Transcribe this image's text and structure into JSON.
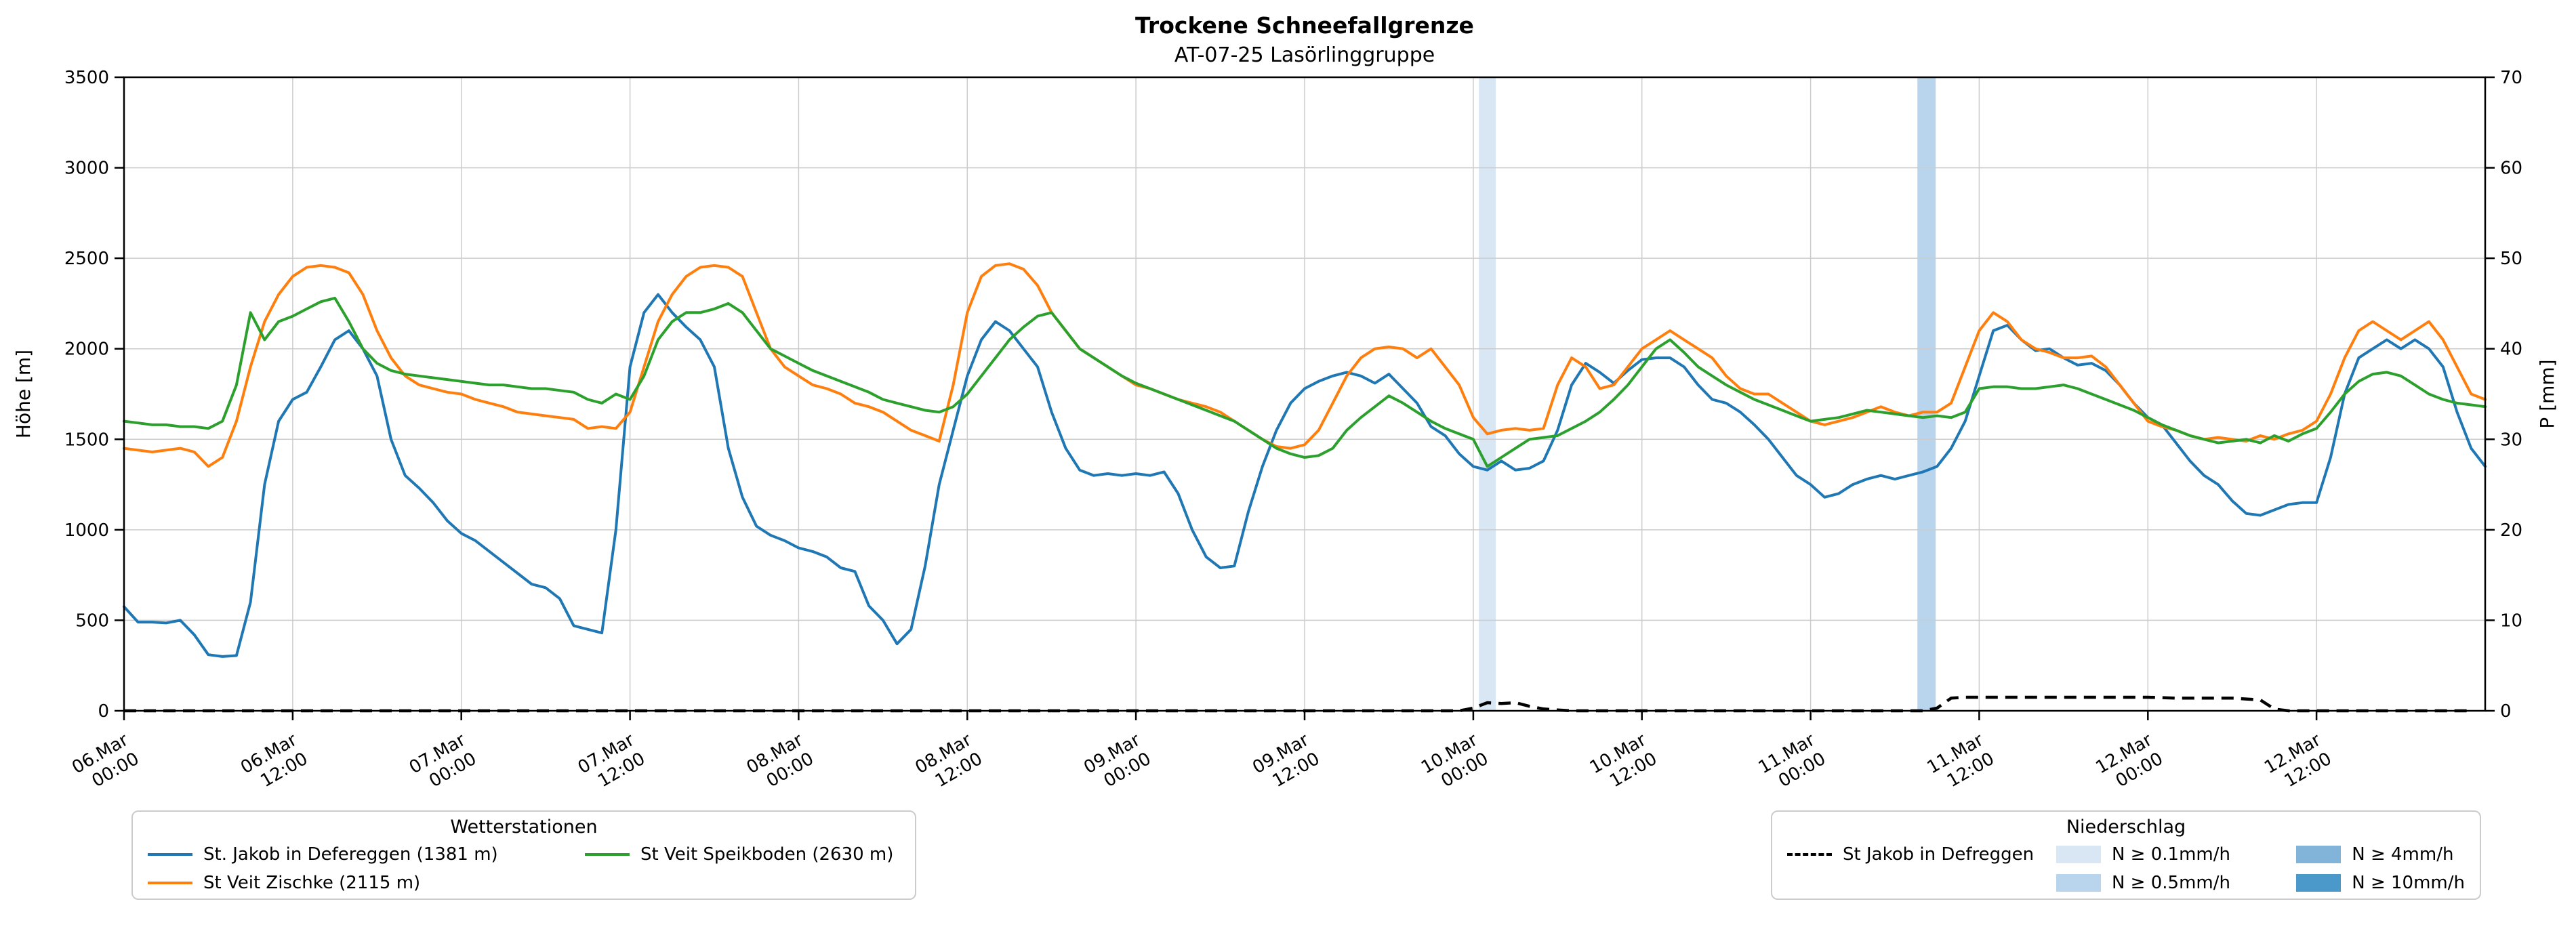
{
  "title": "Trockene Schneefallgrenze",
  "subtitle": "AT-07-25 Lasörlinggruppe",
  "axes": {
    "y_left": {
      "label": "Höhe [m]",
      "min": 0,
      "max": 3500,
      "ticks": [
        0,
        500,
        1000,
        1500,
        2000,
        2500,
        3000,
        3500
      ]
    },
    "y_right": {
      "label": "P [mm]",
      "min": 0,
      "max": 70,
      "ticks": [
        0,
        10,
        20,
        30,
        40,
        50,
        60,
        70
      ]
    },
    "x": {
      "range_hours": [
        0,
        168
      ],
      "tick_hours": [
        0,
        12,
        24,
        36,
        48,
        60,
        72,
        84,
        96,
        108,
        120,
        132,
        144,
        156
      ],
      "tick_labels": [
        [
          "06.Mar",
          "00:00"
        ],
        [
          "06.Mar",
          "12:00"
        ],
        [
          "07.Mar",
          "00:00"
        ],
        [
          "07.Mar",
          "12:00"
        ],
        [
          "08.Mar",
          "00:00"
        ],
        [
          "08.Mar",
          "12:00"
        ],
        [
          "09.Mar",
          "00:00"
        ],
        [
          "09.Mar",
          "12:00"
        ],
        [
          "10.Mar",
          "00:00"
        ],
        [
          "10.Mar",
          "12:00"
        ],
        [
          "11.Mar",
          "00:00"
        ],
        [
          "11.Mar",
          "12:00"
        ],
        [
          "12.Mar",
          "00:00"
        ],
        [
          "12.Mar",
          "12:00"
        ]
      ]
    }
  },
  "chart_data": {
    "type": "line",
    "x_start": "06 Mar 00:00",
    "x_step_hours": 1,
    "grid": true,
    "series": [
      {
        "name": "St. Jakob in Defereggen (1381 m)",
        "color": "#1f77b4",
        "axis": "left",
        "values": [
          575,
          490,
          490,
          485,
          500,
          420,
          310,
          300,
          305,
          600,
          1250,
          1600,
          1720,
          1760,
          1900,
          2050,
          2100,
          2000,
          1850,
          1500,
          1300,
          1230,
          1150,
          1050,
          980,
          940,
          880,
          820,
          760,
          700,
          680,
          620,
          470,
          450,
          430,
          1000,
          1900,
          2200,
          2300,
          2200,
          2120,
          2050,
          1900,
          1450,
          1180,
          1020,
          970,
          940,
          900,
          880,
          850,
          790,
          770,
          580,
          500,
          370,
          450,
          800,
          1250,
          1550,
          1850,
          2050,
          2150,
          2100,
          2000,
          1900,
          1650,
          1450,
          1330,
          1300,
          1310,
          1300,
          1310,
          1300,
          1320,
          1200,
          1000,
          850,
          790,
          800,
          1100,
          1350,
          1550,
          1700,
          1780,
          1820,
          1850,
          1870,
          1850,
          1810,
          1860,
          1780,
          1700,
          1570,
          1520,
          1420,
          1350,
          1330,
          1380,
          1330,
          1340,
          1380,
          1550,
          1800,
          1920,
          1870,
          1810,
          1880,
          1940,
          1950,
          1950,
          1900,
          1800,
          1720,
          1700,
          1650,
          1580,
          1500,
          1400,
          1300,
          1250,
          1180,
          1200,
          1250,
          1280,
          1300,
          1280,
          1300,
          1320,
          1350,
          1450,
          1600,
          1850,
          2100,
          2130,
          2050,
          1990,
          2000,
          1950,
          1910,
          1920,
          1880,
          1800,
          1700,
          1620,
          1580,
          1480,
          1380,
          1300,
          1250,
          1160,
          1090,
          1080,
          1110,
          1140,
          1150,
          1150,
          1400,
          1750,
          1950,
          2000,
          2050,
          2000,
          2050,
          2000,
          1900,
          1650,
          1450,
          1350
        ]
      },
      {
        "name": "St Veit Zischke (2115 m)",
        "color": "#ff7f0e",
        "axis": "left",
        "values": [
          1450,
          1440,
          1430,
          1440,
          1450,
          1430,
          1350,
          1400,
          1600,
          1900,
          2150,
          2300,
          2400,
          2450,
          2460,
          2450,
          2420,
          2300,
          2100,
          1950,
          1850,
          1800,
          1780,
          1760,
          1750,
          1720,
          1700,
          1680,
          1650,
          1640,
          1630,
          1620,
          1610,
          1560,
          1570,
          1560,
          1650,
          1900,
          2150,
          2300,
          2400,
          2450,
          2460,
          2450,
          2400,
          2200,
          2000,
          1900,
          1850,
          1800,
          1780,
          1750,
          1700,
          1680,
          1650,
          1600,
          1550,
          1520,
          1490,
          1800,
          2200,
          2400,
          2460,
          2470,
          2440,
          2350,
          2200,
          2100,
          2000,
          1950,
          1900,
          1850,
          1800,
          1780,
          1750,
          1720,
          1700,
          1680,
          1650,
          1600,
          1550,
          1500,
          1460,
          1450,
          1470,
          1550,
          1700,
          1850,
          1950,
          2000,
          2010,
          2000,
          1950,
          2000,
          1900,
          1800,
          1620,
          1530,
          1550,
          1560,
          1550,
          1560,
          1800,
          1950,
          1900,
          1780,
          1800,
          1900,
          2000,
          2050,
          2100,
          2050,
          2000,
          1950,
          1850,
          1780,
          1750,
          1750,
          1700,
          1650,
          1600,
          1580,
          1600,
          1620,
          1650,
          1680,
          1650,
          1630,
          1650,
          1650,
          1700,
          1900,
          2100,
          2200,
          2150,
          2050,
          2000,
          1980,
          1950,
          1950,
          1960,
          1900,
          1800,
          1700,
          1600,
          1570,
          1550,
          1520,
          1500,
          1510,
          1500,
          1490,
          1520,
          1500,
          1530,
          1550,
          1600,
          1750,
          1950,
          2100,
          2150,
          2100,
          2050,
          2100,
          2150,
          2050,
          1900,
          1750,
          1720
        ]
      },
      {
        "name": "St Veit Speikboden (2630 m)",
        "color": "#2ca02c",
        "axis": "left",
        "values": [
          1600,
          1590,
          1580,
          1580,
          1570,
          1570,
          1560,
          1600,
          1800,
          2200,
          2050,
          2150,
          2180,
          2220,
          2260,
          2280,
          2150,
          2000,
          1920,
          1880,
          1860,
          1850,
          1840,
          1830,
          1820,
          1810,
          1800,
          1800,
          1790,
          1780,
          1780,
          1770,
          1760,
          1720,
          1700,
          1750,
          1720,
          1850,
          2050,
          2150,
          2200,
          2200,
          2220,
          2250,
          2200,
          2100,
          2000,
          1960,
          1920,
          1880,
          1850,
          1820,
          1790,
          1760,
          1720,
          1700,
          1680,
          1660,
          1650,
          1680,
          1750,
          1850,
          1950,
          2050,
          2120,
          2180,
          2200,
          2100,
          2000,
          1950,
          1900,
          1850,
          1810,
          1780,
          1750,
          1720,
          1690,
          1660,
          1630,
          1600,
          1550,
          1500,
          1450,
          1420,
          1400,
          1410,
          1450,
          1550,
          1620,
          1680,
          1740,
          1700,
          1650,
          1600,
          1560,
          1530,
          1500,
          1350,
          1400,
          1450,
          1500,
          1510,
          1520,
          1560,
          1600,
          1650,
          1720,
          1800,
          1900,
          2000,
          2050,
          1980,
          1900,
          1850,
          1800,
          1760,
          1720,
          1690,
          1660,
          1630,
          1600,
          1610,
          1620,
          1640,
          1660,
          1650,
          1640,
          1630,
          1620,
          1630,
          1620,
          1650,
          1780,
          1790,
          1790,
          1780,
          1780,
          1790,
          1800,
          1780,
          1750,
          1720,
          1690,
          1660,
          1620,
          1580,
          1550,
          1520,
          1500,
          1480,
          1490,
          1500,
          1480,
          1520,
          1490,
          1530,
          1560,
          1650,
          1750,
          1820,
          1860,
          1870,
          1850,
          1800,
          1750,
          1720,
          1700,
          1690,
          1680
        ]
      }
    ],
    "precip_line": {
      "name": "St Jakob in Defreggen",
      "color": "#000000",
      "style": "dashed",
      "axis": "right",
      "values": [
        0,
        0,
        0,
        0,
        0,
        0,
        0,
        0,
        0,
        0,
        0,
        0,
        0,
        0,
        0,
        0,
        0,
        0,
        0,
        0,
        0,
        0,
        0,
        0,
        0,
        0,
        0,
        0,
        0,
        0,
        0,
        0,
        0,
        0,
        0,
        0,
        0,
        0,
        0,
        0,
        0,
        0,
        0,
        0,
        0,
        0,
        0,
        0,
        0,
        0,
        0,
        0,
        0,
        0,
        0,
        0,
        0,
        0,
        0,
        0,
        0,
        0,
        0,
        0,
        0,
        0,
        0,
        0,
        0,
        0,
        0,
        0,
        0,
        0,
        0,
        0,
        0,
        0,
        0,
        0,
        0,
        0,
        0,
        0,
        0,
        0,
        0,
        0,
        0,
        0,
        0,
        0,
        0,
        0,
        0,
        0,
        0.3,
        0.9,
        0.8,
        0.9,
        0.5,
        0.2,
        0.1,
        0,
        0,
        0,
        0,
        0,
        0,
        0,
        0,
        0,
        0,
        0,
        0,
        0,
        0,
        0,
        0,
        0,
        0,
        0,
        0,
        0,
        0,
        0,
        0,
        0,
        0,
        0.3,
        1.4,
        1.5,
        1.5,
        1.5,
        1.5,
        1.5,
        1.5,
        1.5,
        1.5,
        1.5,
        1.5,
        1.5,
        1.5,
        1.5,
        1.5,
        1.45,
        1.4,
        1.4,
        1.4,
        1.4,
        1.4,
        1.3,
        1.2,
        0.2,
        0,
        0,
        0,
        0,
        0,
        0,
        0,
        0,
        0,
        0,
        0,
        0,
        0,
        0
      ]
    },
    "precip_bands": [
      {
        "start_h": 96.4,
        "end_h": 97.6,
        "level": "N ≥ 0.1mm/h",
        "color": "#d9e7f5"
      },
      {
        "start_h": 127.6,
        "end_h": 128.9,
        "level": "N ≥ 0.5mm/h",
        "color": "#b9d5ed"
      }
    ]
  },
  "legends": {
    "stations": {
      "title": "Wetterstationen",
      "items": [
        {
          "label": "St. Jakob in Defereggen (1381 m)",
          "color": "#1f77b4"
        },
        {
          "label": "St Veit Zischke (2115 m)",
          "color": "#ff7f0e"
        },
        {
          "label": "St Veit Speikboden (2630 m)",
          "color": "#2ca02c"
        }
      ]
    },
    "precip": {
      "title": "Niederschlag",
      "line_label": "St Jakob in Defreggen",
      "patch_items": [
        {
          "label": "N ≥ 0.1mm/h",
          "color": "#d9e7f5"
        },
        {
          "label": "N ≥ 0.5mm/h",
          "color": "#b9d5ed"
        },
        {
          "label": "N ≥ 4mm/h",
          "color": "#82b4da"
        },
        {
          "label": "N ≥ 10mm/h",
          "color": "#4b98ca"
        }
      ]
    }
  }
}
